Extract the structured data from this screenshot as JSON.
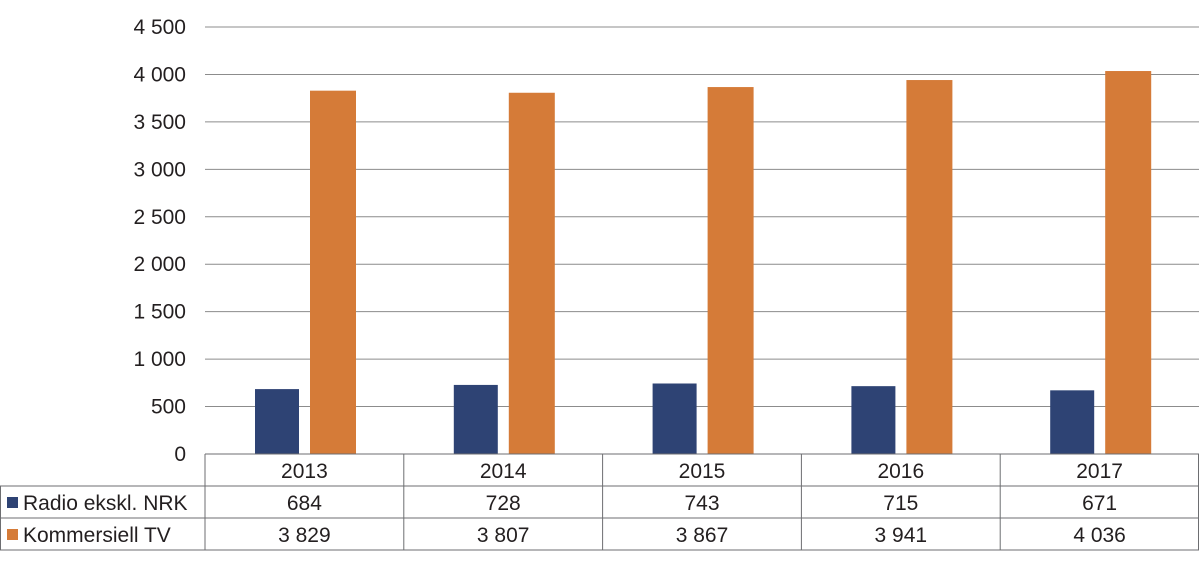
{
  "chart_data": {
    "type": "bar",
    "title": "",
    "xlabel": "",
    "ylabel": "",
    "categories": [
      "2013",
      "2014",
      "2015",
      "2016",
      "2017"
    ],
    "ylim": [
      0,
      4500
    ],
    "yticks": [
      0,
      500,
      1000,
      1500,
      2000,
      2500,
      3000,
      3500,
      4000,
      4500
    ],
    "ytick_labels": [
      "0",
      "500",
      "1 000",
      "1 500",
      "2 000",
      "2 500",
      "3 000",
      "3 500",
      "4 000",
      "4 500"
    ],
    "grid": true,
    "series": [
      {
        "name": "Radio ekskl. NRK",
        "color": "#2e4374",
        "values": [
          684,
          728,
          743,
          715,
          671
        ],
        "labels": [
          "684",
          "728",
          "743",
          "715",
          "671"
        ]
      },
      {
        "name": "Kommersiell TV",
        "color": "#d57b38",
        "values": [
          3829,
          3807,
          3867,
          3941,
          4036
        ],
        "labels": [
          "3 829",
          "3 807",
          "3 867",
          "3 941",
          "4 036"
        ]
      }
    ]
  }
}
